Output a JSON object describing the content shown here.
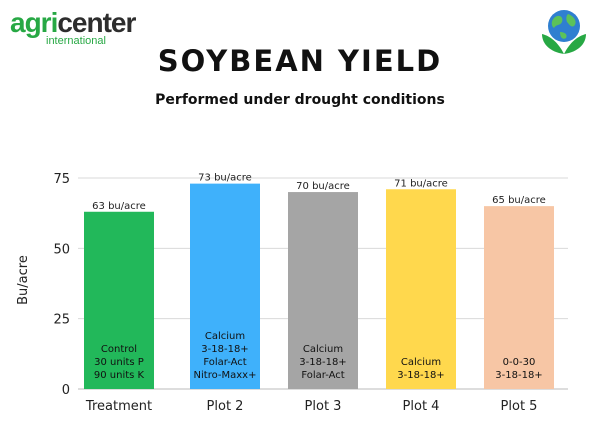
{
  "header": {
    "logo_prefix": "agri",
    "logo_suffix": "center",
    "logo_sub": "international",
    "title": "SOYBEAN YIELD",
    "subtitle": "Performed under drought conditions"
  },
  "chart_data": {
    "type": "bar",
    "categories": [
      "Treatment",
      "Plot 2",
      "Plot 3",
      "Plot 4",
      "Plot 5"
    ],
    "values": [
      63,
      73,
      70,
      71,
      65
    ],
    "data_labels": [
      "63 bu/acre",
      "73 bu/acre",
      "70 bu/acre",
      "71 bu/acre",
      "65 bu/acre"
    ],
    "bar_text": [
      [
        "Control",
        "30 units P",
        "90 units K"
      ],
      [
        "Calcium",
        "3-18-18+",
        "Folar-Act",
        "Nitro-Maxx+"
      ],
      [
        "Calcium",
        "3-18-18+",
        "Folar-Act"
      ],
      [
        "Calcium",
        "3-18-18+"
      ],
      [
        "0-0-30",
        "3-18-18+"
      ]
    ],
    "colors": [
      "#22b85a",
      "#3fb1fb",
      "#a5a5a5",
      "#ffd84d",
      "#f7c6a5"
    ],
    "ylabel": "Bu/acre",
    "xlabel": "",
    "ylim": [
      0,
      75
    ],
    "yticks": [
      0,
      25,
      50,
      75
    ],
    "grid": true
  }
}
